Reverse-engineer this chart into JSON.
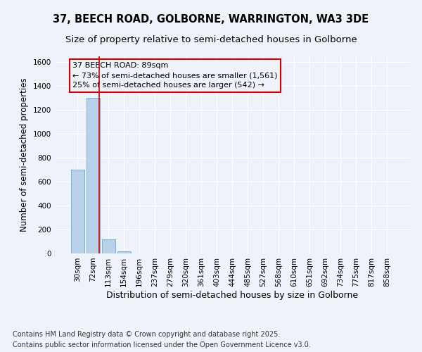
{
  "title": "37, BEECH ROAD, GOLBORNE, WARRINGTON, WA3 3DE",
  "subtitle": "Size of property relative to semi-detached houses in Golborne",
  "xlabel": "Distribution of semi-detached houses by size in Golborne",
  "ylabel": "Number of semi-detached properties",
  "footnote1": "Contains HM Land Registry data © Crown copyright and database right 2025.",
  "footnote2": "Contains public sector information licensed under the Open Government Licence v3.0.",
  "categories": [
    "30sqm",
    "72sqm",
    "113sqm",
    "154sqm",
    "196sqm",
    "237sqm",
    "279sqm",
    "320sqm",
    "361sqm",
    "403sqm",
    "444sqm",
    "485sqm",
    "527sqm",
    "568sqm",
    "610sqm",
    "651sqm",
    "692sqm",
    "734sqm",
    "775sqm",
    "817sqm",
    "858sqm"
  ],
  "values": [
    700,
    1300,
    120,
    15,
    2,
    0,
    0,
    0,
    0,
    0,
    0,
    0,
    0,
    0,
    0,
    0,
    0,
    0,
    0,
    0,
    0
  ],
  "bar_color": "#b8d0e8",
  "bar_edge_color": "#6aaad4",
  "ylim": [
    0,
    1650
  ],
  "yticks": [
    0,
    200,
    400,
    600,
    800,
    1000,
    1200,
    1400,
    1600
  ],
  "annotation_line1": "37 BEECH ROAD: 89sqm",
  "annotation_line2": "← 73% of semi-detached houses are smaller (1,561)",
  "annotation_line3": "25% of semi-detached houses are larger (542) →",
  "annotation_box_color": "#cc0000",
  "red_line_x": 1.42,
  "background_color": "#eef2f9",
  "grid_color": "#ffffff",
  "title_fontsize": 10.5,
  "subtitle_fontsize": 9.5,
  "tick_fontsize": 7.5,
  "annotation_fontsize": 8,
  "ylabel_fontsize": 8.5,
  "xlabel_fontsize": 9
}
